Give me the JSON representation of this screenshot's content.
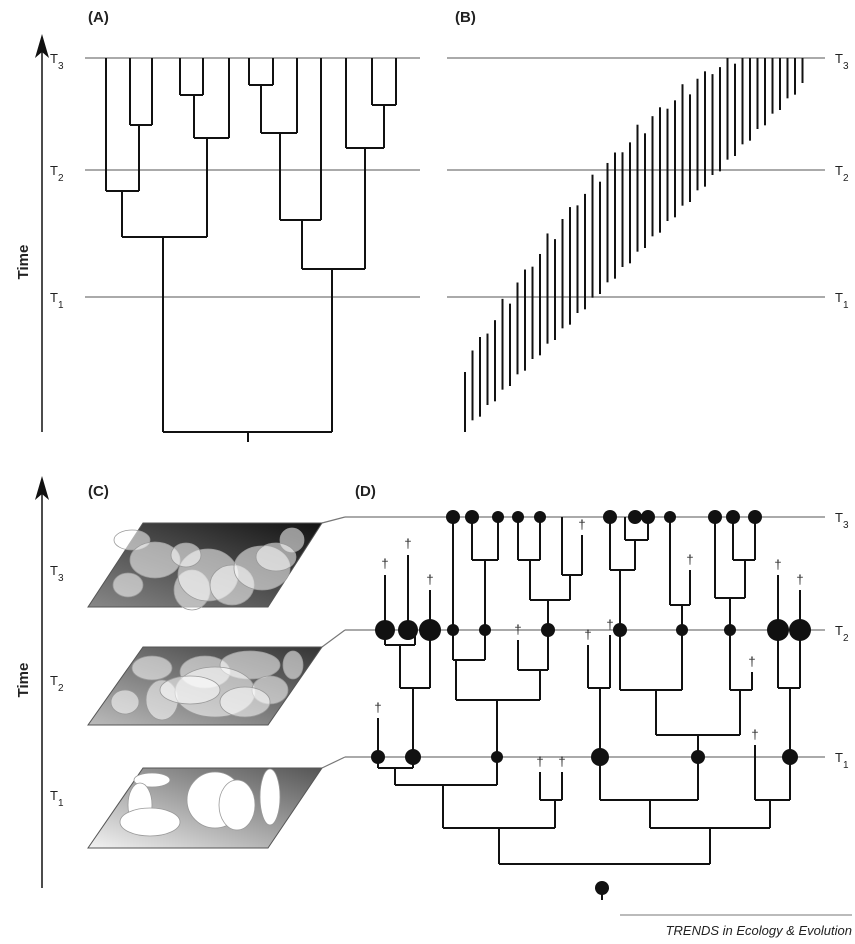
{
  "panels": {
    "a": {
      "label": "(A)"
    },
    "b": {
      "label": "(B)"
    },
    "c": {
      "label": "(C)"
    },
    "d": {
      "label": "(D)"
    }
  },
  "axis_label": "Time",
  "time_levels": [
    {
      "base": "T",
      "sub": "1"
    },
    {
      "base": "T",
      "sub": "2"
    },
    {
      "base": "T",
      "sub": "3"
    }
  ],
  "extinction_mark": "†",
  "footer": "TRENDS in Ecology & Evolution"
}
